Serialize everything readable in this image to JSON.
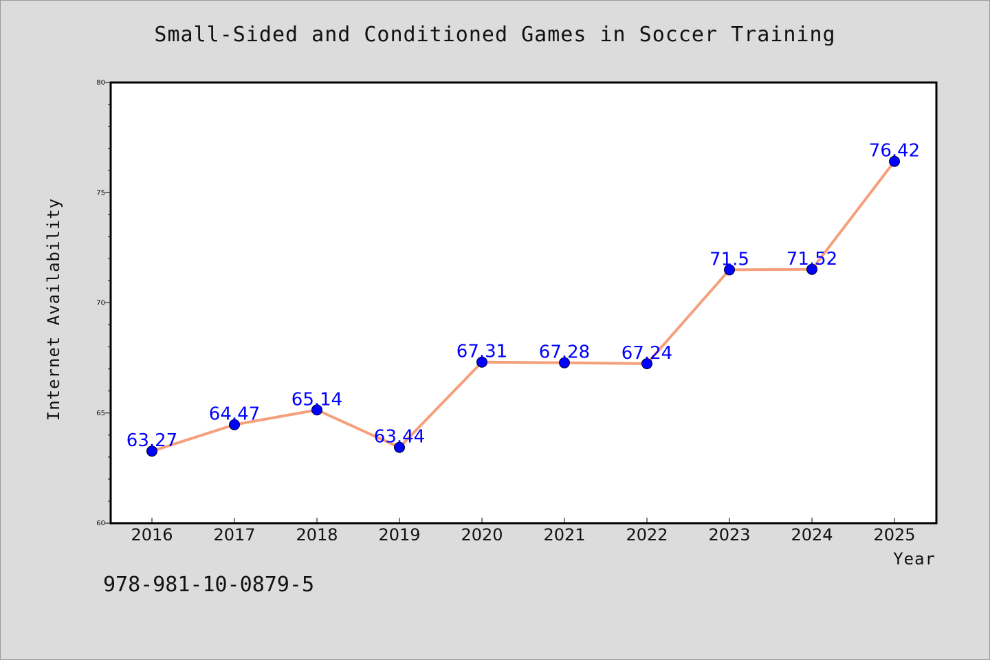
{
  "chart_data": {
    "type": "line",
    "title": "Small-Sided and Conditioned Games in Soccer Training",
    "xlabel": "Year",
    "ylabel": "Internet Availability",
    "categories": [
      "2016",
      "2017",
      "2018",
      "2019",
      "2020",
      "2021",
      "2022",
      "2023",
      "2024",
      "2025"
    ],
    "series": [
      {
        "values": [
          63.27,
          64.47,
          65.14,
          63.44,
          67.31,
          67.28,
          67.24,
          71.5,
          71.52,
          76.42
        ],
        "labels": [
          "63.27",
          "64.47",
          "65.14",
          "63.44",
          "67.31",
          "67.28",
          "67.24",
          "71.5",
          "71.52",
          "76.42"
        ],
        "line_color": "#f4a07c",
        "marker_color": "#0000ff"
      }
    ],
    "ylim": [
      60,
      80
    ],
    "yticks": [
      60,
      65,
      70,
      75,
      80
    ],
    "ytick_labels": [
      "60",
      "65",
      "70",
      "75",
      "80"
    ],
    "grid": false,
    "legend": "none"
  },
  "footer": {
    "isbn": "978-981-10-0879-5"
  }
}
